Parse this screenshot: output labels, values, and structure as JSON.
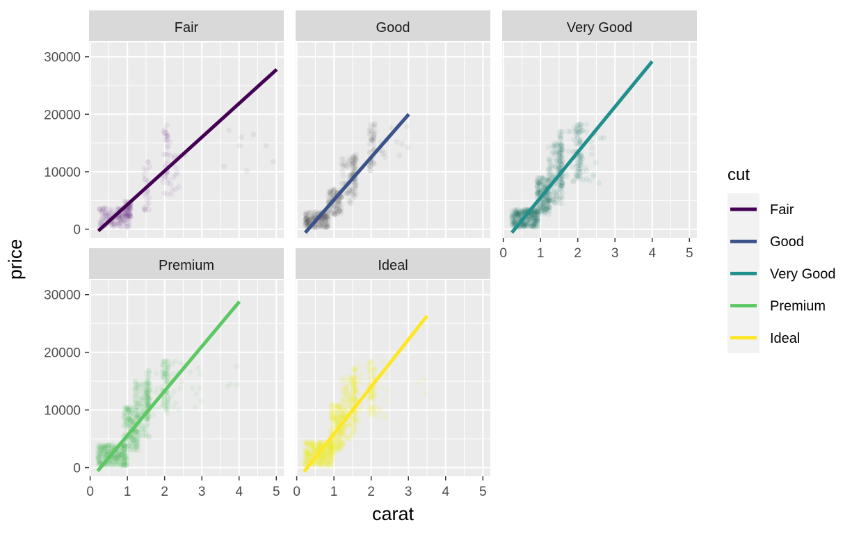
{
  "chart_data": {
    "type": "scatter",
    "xlabel": "carat",
    "ylabel": "price",
    "xlim": [
      -0.03,
      5.2
    ],
    "ylim": [
      -1500,
      32500
    ],
    "xticks": [
      0,
      1,
      2,
      3,
      4,
      5
    ],
    "yticks": [
      0,
      10000,
      20000,
      30000
    ],
    "grid": true,
    "legend": {
      "title": "cut",
      "position": "right"
    },
    "series": [
      {
        "name": "Fair",
        "color": "#440154",
        "point_color": "#6a2c7a",
        "point_alpha": 0.07,
        "fit_line": {
          "x": [
            0.22,
            5.01
          ],
          "y": [
            -300,
            27800
          ]
        },
        "clusters": [
          {
            "x": [
              0.25,
              1.05
            ],
            "y": [
              300,
              3800
            ],
            "n": 140
          },
          {
            "x": [
              0.9,
              1.1
            ],
            "y": [
              2000,
              5000
            ],
            "n": 50
          },
          {
            "x": [
              1.45,
              1.6
            ],
            "y": [
              3000,
              12000
            ],
            "n": 25
          },
          {
            "x": [
              1.95,
              2.1
            ],
            "y": [
              6000,
              18500
            ],
            "n": 35
          },
          {
            "x": [
              2.1,
              2.6
            ],
            "y": [
              5500,
              17000
            ],
            "n": 15
          },
          {
            "x": [
              2.5,
              5.0
            ],
            "y": [
              9000,
              18500
            ],
            "n": 8
          }
        ]
      },
      {
        "name": "Good",
        "color": "#3b528b",
        "point_color": "#555555",
        "point_alpha": 0.07,
        "fit_line": {
          "x": [
            0.23,
            3.01
          ],
          "y": [
            -600,
            20000
          ]
        },
        "clusters": [
          {
            "x": [
              0.23,
              0.85
            ],
            "y": [
              300,
              3000
            ],
            "n": 200
          },
          {
            "x": [
              0.85,
              1.2
            ],
            "y": [
              2500,
              7000
            ],
            "n": 110
          },
          {
            "x": [
              1.2,
              1.6
            ],
            "y": [
              4500,
              12500
            ],
            "n": 70
          },
          {
            "x": [
              1.5,
              1.6
            ],
            "y": [
              7000,
              13000
            ],
            "n": 40
          },
          {
            "x": [
              1.95,
              2.1
            ],
            "y": [
              10000,
              18500
            ],
            "n": 50
          },
          {
            "x": [
              2.1,
              3.0
            ],
            "y": [
              12000,
              18500
            ],
            "n": 15
          }
        ]
      },
      {
        "name": "Very Good",
        "color": "#21908c",
        "point_color": "#1a6f6a",
        "point_alpha": 0.07,
        "fit_line": {
          "x": [
            0.23,
            4.0
          ],
          "y": [
            -600,
            29200
          ]
        },
        "clusters": [
          {
            "x": [
              0.23,
              0.95
            ],
            "y": [
              300,
              3500
            ],
            "n": 300
          },
          {
            "x": [
              0.9,
              1.25
            ],
            "y": [
              2500,
              9000
            ],
            "n": 180
          },
          {
            "x": [
              1.2,
              1.6
            ],
            "y": [
              4500,
              15000
            ],
            "n": 130
          },
          {
            "x": [
              1.5,
              1.6
            ],
            "y": [
              7000,
              17000
            ],
            "n": 60
          },
          {
            "x": [
              1.95,
              2.1
            ],
            "y": [
              9000,
              18500
            ],
            "n": 70
          },
          {
            "x": [
              1.6,
              2.7
            ],
            "y": [
              8000,
              18500
            ],
            "n": 40
          }
        ]
      },
      {
        "name": "Premium",
        "color": "#5dc863",
        "point_color": "#4bb34f",
        "point_alpha": 0.07,
        "fit_line": {
          "x": [
            0.2,
            4.01
          ],
          "y": [
            -600,
            28800
          ]
        },
        "clusters": [
          {
            "x": [
              0.2,
              1.0
            ],
            "y": [
              300,
              4000
            ],
            "n": 300
          },
          {
            "x": [
              0.9,
              1.3
            ],
            "y": [
              3000,
              10500
            ],
            "n": 180
          },
          {
            "x": [
              1.2,
              1.6
            ],
            "y": [
              5000,
              15000
            ],
            "n": 130
          },
          {
            "x": [
              1.5,
              1.6
            ],
            "y": [
              8000,
              17000
            ],
            "n": 60
          },
          {
            "x": [
              1.95,
              2.1
            ],
            "y": [
              10000,
              18500
            ],
            "n": 70
          },
          {
            "x": [
              1.6,
              3.0
            ],
            "y": [
              9000,
              18500
            ],
            "n": 40
          },
          {
            "x": [
              3.0,
              4.0
            ],
            "y": [
              14000,
              18500
            ],
            "n": 4
          }
        ]
      },
      {
        "name": "Ideal",
        "color": "#fde725",
        "point_color": "#f5f50a",
        "point_alpha": 0.07,
        "fit_line": {
          "x": [
            0.2,
            3.5
          ],
          "y": [
            -700,
            26300
          ]
        },
        "clusters": [
          {
            "x": [
              0.2,
              1.0
            ],
            "y": [
              300,
              4500
            ],
            "n": 350
          },
          {
            "x": [
              0.9,
              1.25
            ],
            "y": [
              3000,
              11000
            ],
            "n": 200
          },
          {
            "x": [
              1.2,
              1.6
            ],
            "y": [
              5000,
              16000
            ],
            "n": 150
          },
          {
            "x": [
              1.5,
              1.6
            ],
            "y": [
              8000,
              17500
            ],
            "n": 60
          },
          {
            "x": [
              1.95,
              2.1
            ],
            "y": [
              9000,
              18500
            ],
            "n": 70
          },
          {
            "x": [
              1.6,
              2.6
            ],
            "y": [
              8000,
              18500
            ],
            "n": 40
          },
          {
            "x": [
              3.2,
              3.5
            ],
            "y": [
              12000,
              18000
            ],
            "n": 3
          }
        ]
      }
    ]
  }
}
